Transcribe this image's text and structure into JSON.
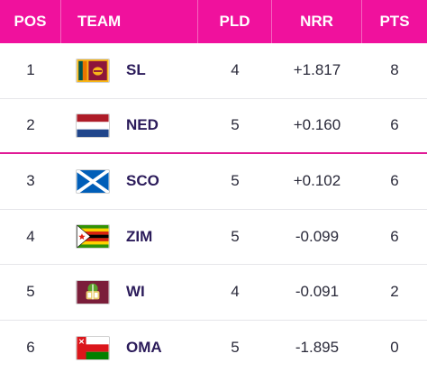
{
  "header": {
    "pos": "POS",
    "team": "TEAM",
    "pld": "PLD",
    "nrr": "NRR",
    "pts": "PTS"
  },
  "colors": {
    "header_bg": "#f0119d",
    "cutoff_line": "#e01b96",
    "team_text": "#2b1b5a"
  },
  "rows": [
    {
      "pos": "1",
      "team": "SL",
      "flag": "sri-lanka-flag-icon",
      "pld": "4",
      "nrr": "+1.817",
      "pts": "8"
    },
    {
      "pos": "2",
      "team": "NED",
      "flag": "netherlands-flag-icon",
      "pld": "5",
      "nrr": "+0.160",
      "pts": "6"
    },
    {
      "pos": "3",
      "team": "SCO",
      "flag": "scotland-flag-icon",
      "pld": "5",
      "nrr": "+0.102",
      "pts": "6"
    },
    {
      "pos": "4",
      "team": "ZIM",
      "flag": "zimbabwe-flag-icon",
      "pld": "5",
      "nrr": "-0.099",
      "pts": "6"
    },
    {
      "pos": "5",
      "team": "WI",
      "flag": "west-indies-flag-icon",
      "pld": "4",
      "nrr": "-0.091",
      "pts": "2"
    },
    {
      "pos": "6",
      "team": "OMA",
      "flag": "oman-flag-icon",
      "pld": "5",
      "nrr": "-1.895",
      "pts": "0"
    }
  ]
}
